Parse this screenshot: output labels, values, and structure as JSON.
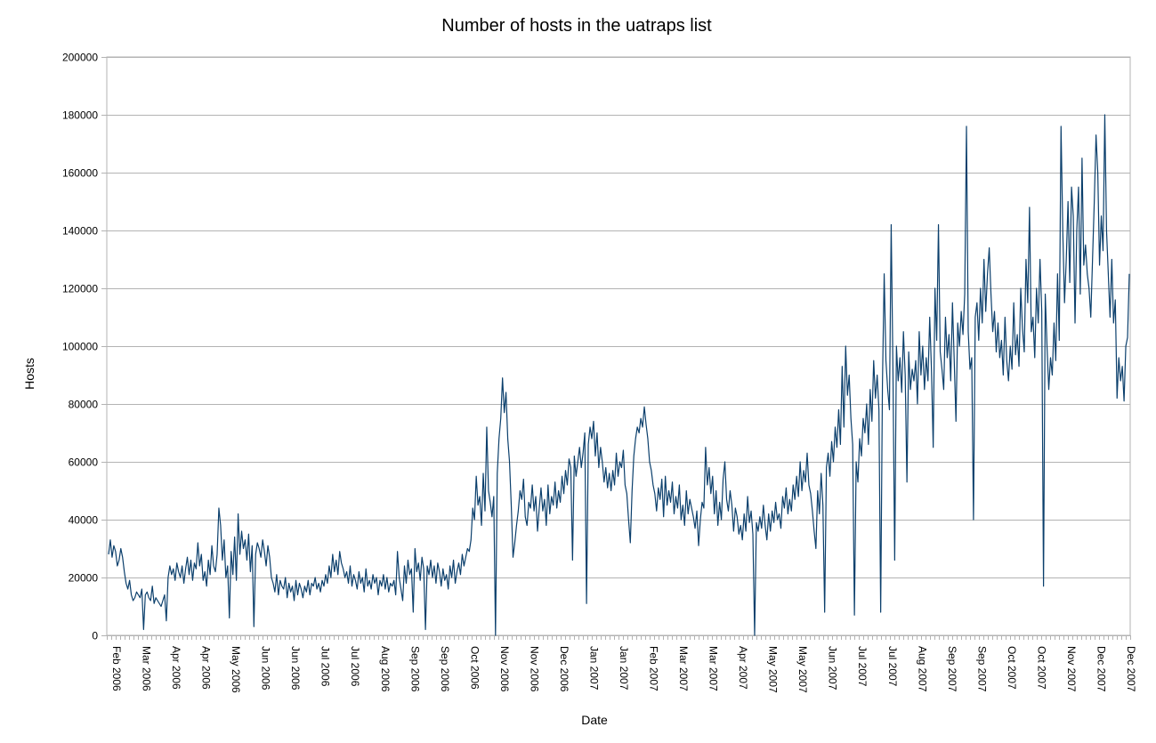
{
  "chart_data": {
    "type": "line",
    "title": "Number of hosts in the uatraps list",
    "xlabel": "Date",
    "ylabel": "Hosts",
    "ylim": [
      0,
      200000
    ],
    "y_ticks": [
      "0",
      "20000",
      "40000",
      "60000",
      "80000",
      "100000",
      "120000",
      "140000",
      "160000",
      "180000",
      "200000"
    ],
    "x_tick_labels": [
      "Feb 2006",
      "Mar 2006",
      "Apr 2006",
      "Apr 2006",
      "May 2006",
      "Jun 2006",
      "Jun 2006",
      "Jul 2006",
      "Jul 2006",
      "Aug 2006",
      "Sep 2006",
      "Sep 2006",
      "Oct 2006",
      "Nov 2006",
      "Nov 2006",
      "Dec 2006",
      "Jan 2007",
      "Jan 2007",
      "Feb 2007",
      "Mar 2007",
      "Mar 2007",
      "Apr 2007",
      "May 2007",
      "May 2007",
      "Jun 2007",
      "Jul 2007",
      "Jul 2007",
      "Aug 2007",
      "Sep 2007",
      "Sep 2007",
      "Oct 2007",
      "Oct 2007",
      "Nov 2007",
      "Dec 2007",
      "Dec 2007"
    ],
    "grid": true,
    "legend": "none",
    "line_color": "#0b3f6c",
    "series": [
      {
        "values": [
          28000,
          33000,
          27000,
          31000,
          29000,
          24000,
          26000,
          30000,
          27000,
          22000,
          18000,
          16000,
          19000,
          14000,
          12000,
          13000,
          15000,
          14000,
          13000,
          16000,
          2000,
          14000,
          15000,
          13000,
          12000,
          17000,
          11000,
          13000,
          12000,
          11000,
          10000,
          12000,
          14000,
          5000,
          20000,
          24000,
          21000,
          23000,
          19000,
          25000,
          22000,
          20000,
          24000,
          18000,
          23000,
          27000,
          21000,
          26000,
          19000,
          25000,
          23000,
          32000,
          24000,
          28000,
          19000,
          22000,
          17000,
          26000,
          21000,
          31000,
          24000,
          22000,
          28000,
          44000,
          38000,
          26000,
          33000,
          20000,
          24000,
          6000,
          29000,
          21000,
          34000,
          19000,
          42000,
          28000,
          36000,
          30000,
          33000,
          26000,
          35000,
          22000,
          31000,
          3000,
          28000,
          32000,
          30000,
          27000,
          33000,
          29000,
          24000,
          31000,
          27000,
          20000,
          18000,
          15000,
          21000,
          14000,
          19000,
          17000,
          16000,
          20000,
          13000,
          18000,
          15000,
          17000,
          12000,
          19000,
          14000,
          18000,
          16000,
          13000,
          17000,
          15000,
          19000,
          14000,
          18000,
          17000,
          20000,
          16000,
          18000,
          15000,
          19000,
          17000,
          21000,
          18000,
          24000,
          20000,
          28000,
          22000,
          26000,
          21000,
          29000,
          25000,
          23000,
          20000,
          22000,
          18000,
          24000,
          17000,
          21000,
          19000,
          16000,
          22000,
          18000,
          20000,
          15000,
          23000,
          17000,
          19000,
          16000,
          21000,
          18000,
          20000,
          14000,
          19000,
          17000,
          21000,
          16000,
          20000,
          15000,
          18000,
          17000,
          19000,
          14000,
          29000,
          20000,
          16000,
          12000,
          24000,
          18000,
          26000,
          21000,
          23000,
          8000,
          30000,
          22000,
          25000,
          19000,
          27000,
          23000,
          2000,
          24000,
          21000,
          26000,
          20000,
          24000,
          18000,
          25000,
          22000,
          17000,
          23000,
          19000,
          21000,
          16000,
          24000,
          20000,
          26000,
          18000,
          22000,
          25000,
          21000,
          28000,
          24000,
          27000,
          30000,
          29000,
          33000,
          44000,
          40000,
          55000,
          45000,
          48000,
          38000,
          56000,
          43000,
          72000,
          50000,
          46000,
          41000,
          48000,
          0,
          56000,
          68000,
          75000,
          89000,
          77000,
          84000,
          68000,
          60000,
          45000,
          27000,
          32000,
          38000,
          43000,
          50000,
          47000,
          54000,
          41000,
          38000,
          46000,
          44000,
          52000,
          43000,
          48000,
          36000,
          44000,
          51000,
          43000,
          47000,
          38000,
          52000,
          42000,
          48000,
          45000,
          53000,
          44000,
          50000,
          46000,
          55000,
          49000,
          57000,
          52000,
          61000,
          58000,
          26000,
          62000,
          55000,
          60000,
          65000,
          58000,
          63000,
          70000,
          11000,
          66000,
          72000,
          68000,
          74000,
          62000,
          70000,
          58000,
          65000,
          60000,
          53000,
          58000,
          51000,
          56000,
          50000,
          57000,
          52000,
          63000,
          55000,
          60000,
          58000,
          64000,
          52000,
          49000,
          40000,
          32000,
          50000,
          62000,
          68000,
          72000,
          70000,
          75000,
          72000,
          79000,
          73000,
          68000,
          60000,
          57000,
          52000,
          49000,
          43000,
          51000,
          47000,
          54000,
          41000,
          55000,
          45000,
          50000,
          46000,
          53000,
          42000,
          48000,
          44000,
          52000,
          40000,
          45000,
          38000,
          50000,
          42000,
          47000,
          44000,
          41000,
          37000,
          43000,
          31000,
          40000,
          46000,
          44000,
          65000,
          52000,
          58000,
          49000,
          55000,
          42000,
          50000,
          38000,
          46000,
          40000,
          54000,
          60000,
          47000,
          43000,
          50000,
          45000,
          36000,
          44000,
          41000,
          35000,
          38000,
          33000,
          42000,
          36000,
          48000,
          39000,
          43000,
          35000,
          0,
          39000,
          36000,
          41000,
          37000,
          45000,
          38000,
          33000,
          42000,
          36000,
          43000,
          39000,
          46000,
          40000,
          42000,
          37000,
          48000,
          44000,
          51000,
          42000,
          47000,
          43000,
          52000,
          47000,
          55000,
          48000,
          60000,
          50000,
          57000,
          53000,
          63000,
          52000,
          49000,
          43000,
          36000,
          30000,
          50000,
          42000,
          56000,
          45000,
          8000,
          58000,
          63000,
          55000,
          67000,
          60000,
          72000,
          65000,
          78000,
          66000,
          93000,
          72000,
          100000,
          83000,
          90000,
          75000,
          66000,
          7000,
          60000,
          53000,
          68000,
          62000,
          75000,
          70000,
          80000,
          66000,
          85000,
          74000,
          95000,
          82000,
          90000,
          78000,
          8000,
          87000,
          125000,
          95000,
          85000,
          78000,
          142000,
          92000,
          26000,
          100000,
          88000,
          96000,
          84000,
          105000,
          90000,
          53000,
          98000,
          85000,
          92000,
          88000,
          95000,
          80000,
          105000,
          90000,
          100000,
          85000,
          96000,
          88000,
          110000,
          92000,
          65000,
          120000,
          102000,
          142000,
          98000,
          92000,
          85000,
          110000,
          96000,
          104000,
          88000,
          115000,
          95000,
          74000,
          108000,
          100000,
          112000,
          104000,
          118000,
          176000,
          105000,
          92000,
          96000,
          40000,
          110000,
          115000,
          102000,
          120000,
          108000,
          130000,
          112000,
          125000,
          134000,
          118000,
          105000,
          112000,
          98000,
          108000,
          96000,
          102000,
          90000,
          110000,
          95000,
          88000,
          100000,
          92000,
          115000,
          97000,
          104000,
          93000,
          120000,
          106000,
          98000,
          130000,
          115000,
          148000,
          105000,
          110000,
          96000,
          120000,
          108000,
          130000,
          112000,
          17000,
          118000,
          100000,
          85000,
          96000,
          90000,
          108000,
          95000,
          125000,
          102000,
          176000,
          140000,
          115000,
          130000,
          150000,
          122000,
          155000,
          145000,
          108000,
          140000,
          155000,
          118000,
          165000,
          128000,
          135000,
          125000,
          120000,
          110000,
          130000,
          150000,
          173000,
          160000,
          128000,
          145000,
          133000,
          180000,
          140000,
          125000,
          110000,
          130000,
          108000,
          116000,
          82000,
          96000,
          88000,
          93000,
          81000,
          100000,
          103000,
          125000
        ]
      }
    ]
  }
}
